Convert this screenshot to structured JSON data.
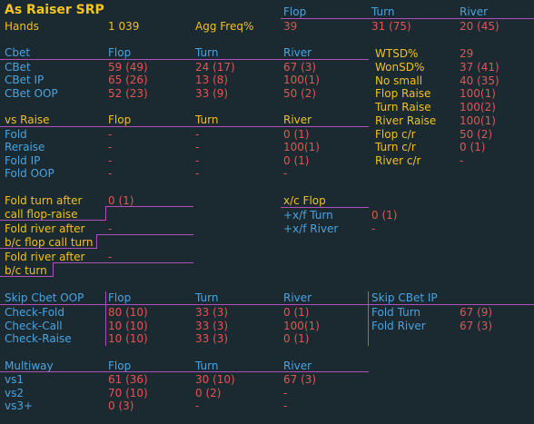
{
  "title": "As Raiser SRP",
  "header": {
    "hands_label": "Hands",
    "hands_value": "1 039",
    "agg_label": "Agg Freq%",
    "agg_flop": "39",
    "agg_turn": "31 (75)",
    "agg_river": "20 (45)",
    "col_flop": "Flop",
    "col_turn": "Turn",
    "col_river": "River"
  },
  "cbet": {
    "header": "Cbet",
    "col_flop": "Flop",
    "col_turn": "Turn",
    "col_river": "River",
    "rows": [
      {
        "label": "CBet",
        "flop": "59 (49)",
        "turn": "24 (17)",
        "river": "67 (3)"
      },
      {
        "label": "CBet IP",
        "flop": "65 (26)",
        "turn": "13 (8)",
        "river": "100(1)"
      },
      {
        "label": "CBet OOP",
        "flop": "52 (23)",
        "turn": "33 (9)",
        "river": "50 (2)"
      }
    ]
  },
  "showdown": [
    {
      "label": "WTSD%",
      "value": "29"
    },
    {
      "label": "WonSD%",
      "value": "37 (41)"
    },
    {
      "label": "No small",
      "value": "40 (35)"
    },
    {
      "label": "Flop Raise",
      "value": "100(1)"
    },
    {
      "label": "Turn Raise",
      "value": "100(2)"
    },
    {
      "label": "River Raise",
      "value": "100(1)"
    },
    {
      "label": "Flop c/r",
      "value": "50 (2)"
    },
    {
      "label": "Turn c/r",
      "value": "0 (1)"
    },
    {
      "label": "River c/r",
      "value": "-"
    }
  ],
  "vsraise": {
    "header": "vs Raise",
    "col_flop": "Flop",
    "col_turn": "Turn",
    "col_river": "River",
    "rows": [
      {
        "label": "Fold",
        "flop": "-",
        "turn": "-",
        "river": "0 (1)"
      },
      {
        "label": "Reraise",
        "flop": "-",
        "turn": "-",
        "river": "100(1)"
      },
      {
        "label": "Fold IP",
        "flop": "-",
        "turn": "-",
        "river": "0 (1)"
      },
      {
        "label": "Fold OOP",
        "flop": "-",
        "turn": "-",
        "river": "-"
      }
    ]
  },
  "foldafter": [
    {
      "line1": "Fold turn after",
      "line2": "call flop-raise",
      "value": "0 (1)"
    },
    {
      "line1": "Fold river after",
      "line2": "b/c flop call turn",
      "value": "-"
    },
    {
      "line1": "Fold river after",
      "line2": "b/c turn",
      "value": "-"
    }
  ],
  "xc": {
    "header": "x/c Flop",
    "rows": [
      {
        "label": "+x/f Turn",
        "value": "0 (1)"
      },
      {
        "label": "+x/f River",
        "value": "-"
      }
    ]
  },
  "skipcbet": {
    "header": "Skip Cbet OOP",
    "col_flop": "Flop",
    "col_turn": "Turn",
    "col_river": "River",
    "rows": [
      {
        "label": "Check-Fold",
        "flop": "80 (10)",
        "turn": "33 (3)",
        "river": "0 (1)"
      },
      {
        "label": "Check-Call",
        "flop": "10 (10)",
        "turn": "33 (3)",
        "river": "100(1)"
      },
      {
        "label": "Check-Raise",
        "flop": "10 (10)",
        "turn": "33 (3)",
        "river": "0 (1)"
      }
    ]
  },
  "skipip": {
    "header": "Skip CBet IP",
    "rows": [
      {
        "label": "Fold Turn",
        "value": "67 (9)"
      },
      {
        "label": "Fold River",
        "value": "67 (3)"
      }
    ]
  },
  "multiway": {
    "header": "Multiway",
    "col_flop": "Flop",
    "col_turn": "Turn",
    "col_river": "River",
    "rows": [
      {
        "label": "vs1",
        "flop": "61 (36)",
        "turn": "30 (10)",
        "river": "67 (3)"
      },
      {
        "label": "vs2",
        "flop": "70 (10)",
        "turn": "0 (2)",
        "river": "-"
      },
      {
        "label": "vs3+",
        "flop": "0 (3)",
        "turn": "-",
        "river": "-"
      }
    ]
  },
  "colors": {
    "background": "#1b2a30",
    "label_blue": "#4aa3df",
    "value_red": "#e05555",
    "header_yellow": "#f0c020",
    "divider_purple": "#b04fb8"
  }
}
